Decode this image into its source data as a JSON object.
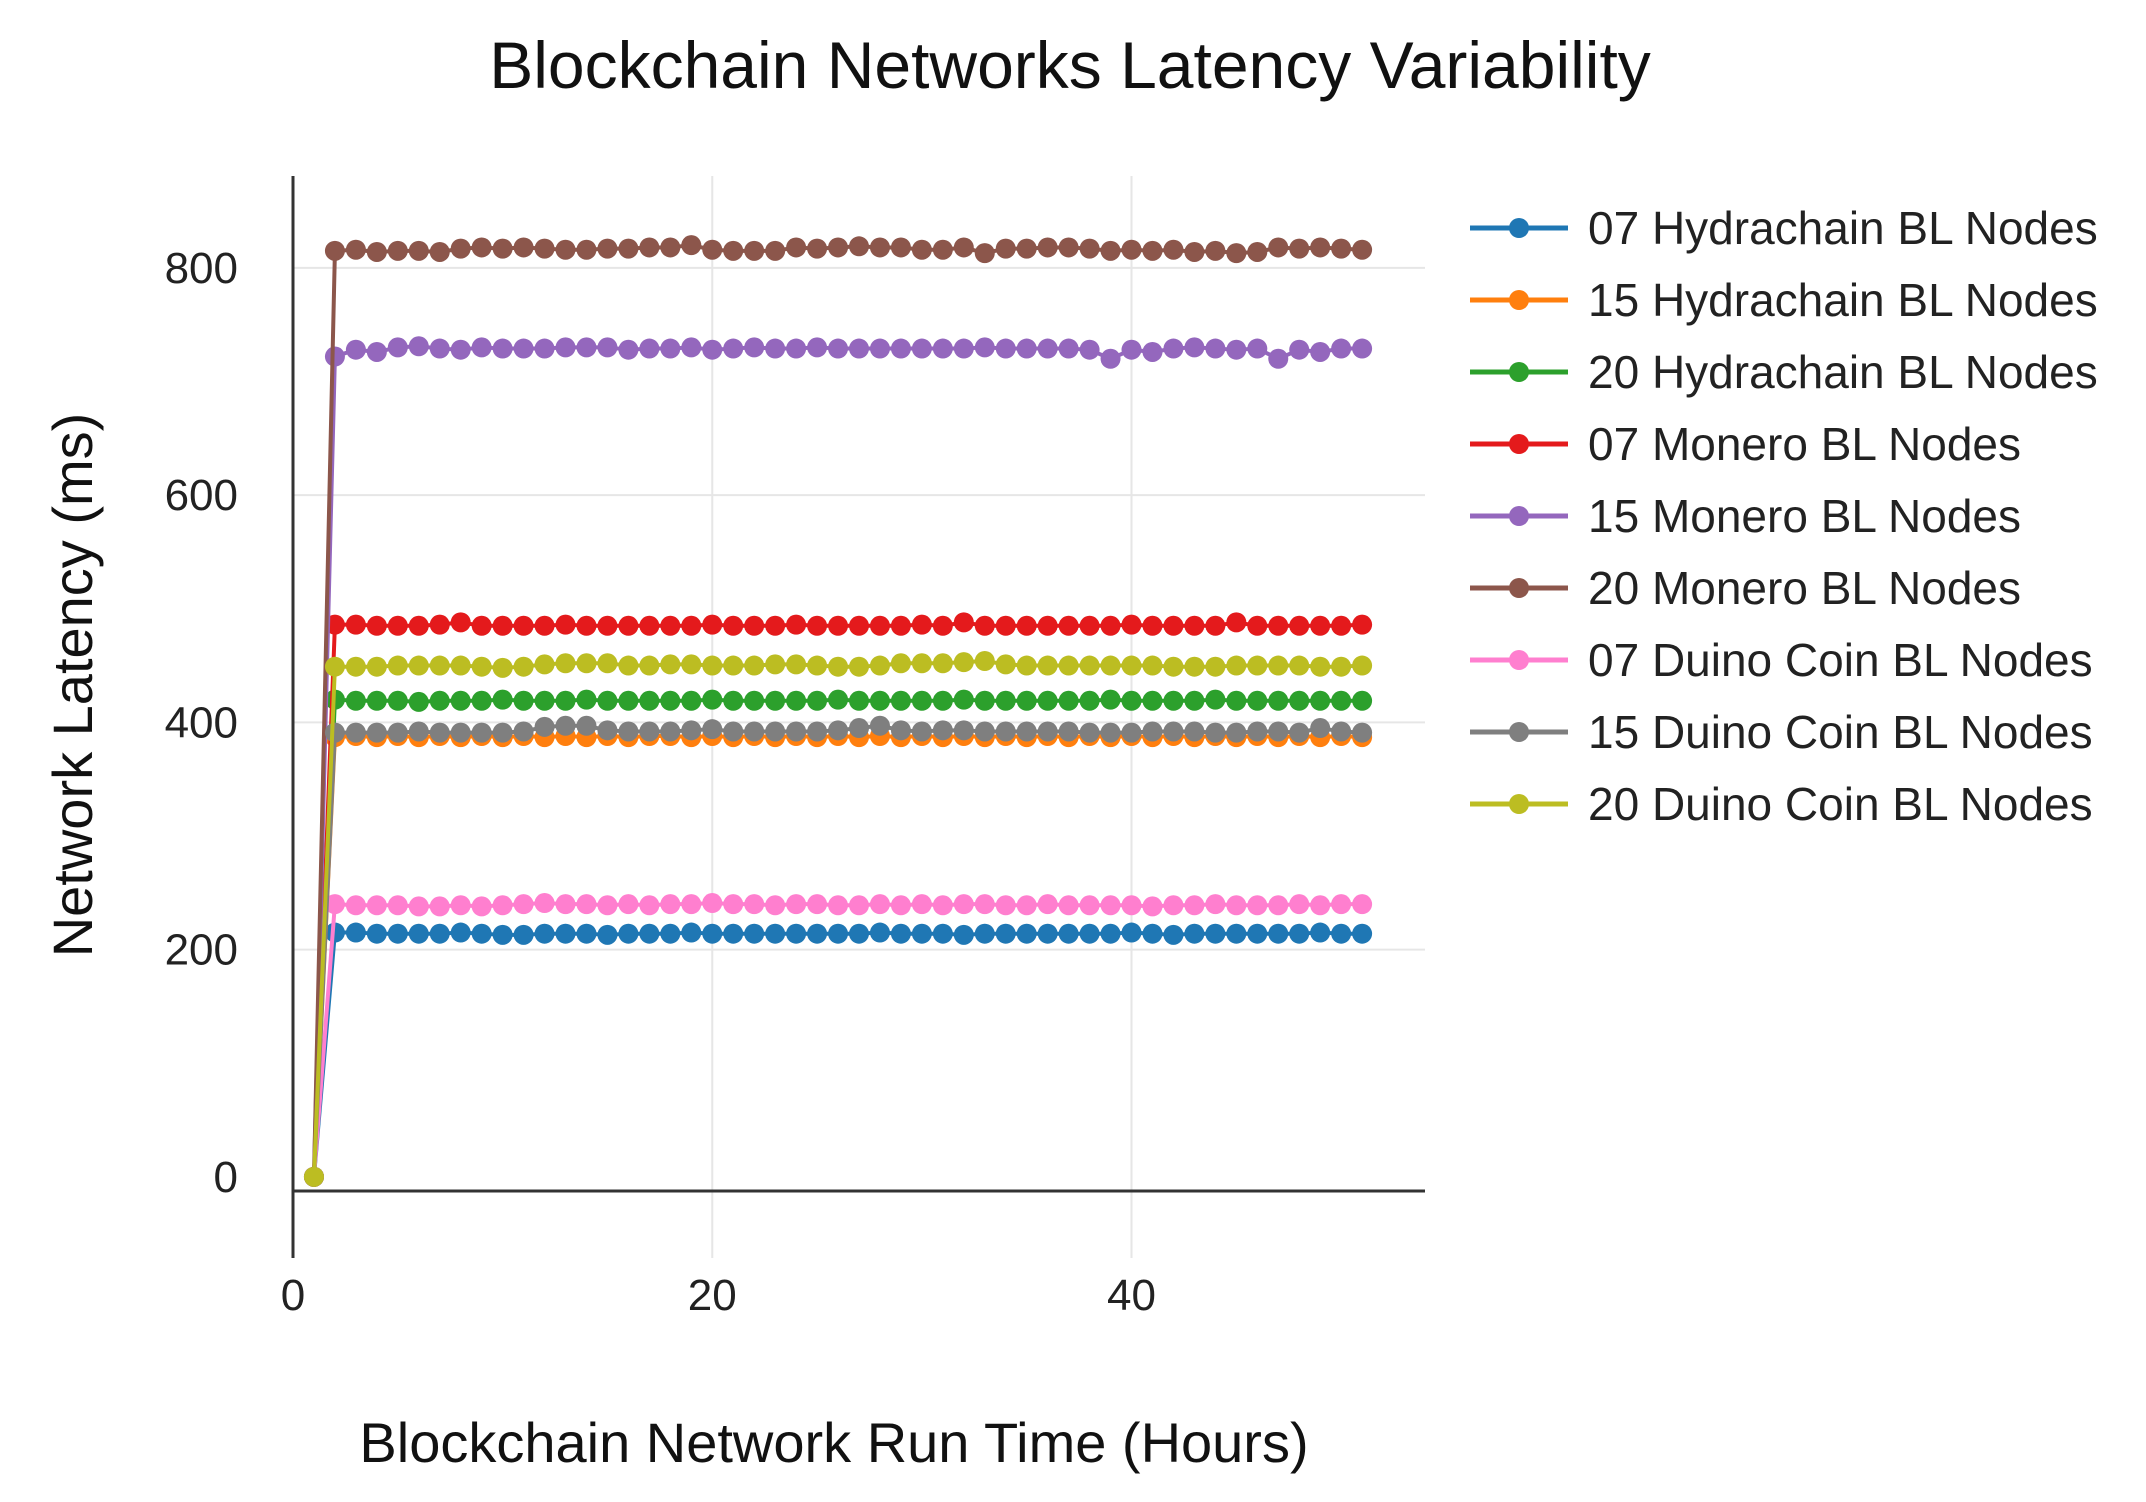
{
  "chart_data": {
    "type": "line",
    "title": "Blockchain Networks Latency Variability",
    "xlabel": "Blockchain Network Run Time (Hours)",
    "ylabel": "Network Latency (ms)",
    "xlim": [
      0,
      54
    ],
    "ylim": [
      -60,
      880
    ],
    "xticks": [
      0,
      20,
      40
    ],
    "yticks": [
      0,
      200,
      400,
      600,
      800
    ],
    "grid": true,
    "legend_position": "right",
    "x": [
      1,
      2,
      3,
      4,
      5,
      6,
      7,
      8,
      9,
      10,
      11,
      12,
      13,
      14,
      15,
      16,
      17,
      18,
      19,
      20,
      21,
      22,
      23,
      24,
      25,
      26,
      27,
      28,
      29,
      30,
      31,
      32,
      33,
      34,
      35,
      36,
      37,
      38,
      39,
      40,
      41,
      42,
      43,
      44,
      45,
      46,
      47,
      48,
      49,
      50,
      51
    ],
    "series": [
      {
        "name": "07 Hydrachain BL Nodes",
        "color": "#1f77b4",
        "values": [
          0,
          215,
          215,
          214,
          214,
          214,
          214,
          215,
          214,
          213,
          213,
          214,
          214,
          214,
          213,
          214,
          214,
          214,
          215,
          214,
          214,
          214,
          214,
          214,
          214,
          214,
          214,
          215,
          214,
          214,
          214,
          213,
          214,
          214,
          214,
          214,
          214,
          214,
          214,
          215,
          214,
          213,
          214,
          214,
          214,
          214,
          214,
          214,
          215,
          214,
          214
        ]
      },
      {
        "name": "15 Hydrachain BL Nodes",
        "color": "#ff7f0e",
        "values": [
          0,
          387,
          388,
          387,
          388,
          387,
          388,
          387,
          388,
          387,
          388,
          387,
          388,
          387,
          388,
          387,
          388,
          388,
          387,
          388,
          387,
          388,
          387,
          388,
          387,
          388,
          387,
          388,
          387,
          388,
          387,
          388,
          387,
          388,
          387,
          388,
          387,
          388,
          387,
          388,
          387,
          388,
          387,
          388,
          387,
          388,
          387,
          388,
          387,
          388,
          387
        ]
      },
      {
        "name": "20 Hydrachain BL Nodes",
        "color": "#2ca02c",
        "values": [
          0,
          420,
          419,
          419,
          419,
          418,
          419,
          419,
          419,
          420,
          419,
          419,
          419,
          420,
          419,
          419,
          419,
          419,
          419,
          420,
          419,
          419,
          419,
          419,
          419,
          420,
          419,
          419,
          419,
          419,
          419,
          420,
          419,
          419,
          419,
          419,
          419,
          419,
          420,
          419,
          419,
          419,
          419,
          420,
          419,
          419,
          419,
          419,
          419,
          419,
          419
        ]
      },
      {
        "name": "07 Monero BL Nodes",
        "color": "#e41a1c",
        "values": [
          0,
          486,
          486,
          485,
          485,
          485,
          486,
          488,
          485,
          485,
          485,
          485,
          486,
          485,
          485,
          485,
          485,
          485,
          485,
          486,
          485,
          485,
          485,
          486,
          485,
          485,
          485,
          485,
          485,
          486,
          485,
          488,
          485,
          485,
          485,
          485,
          485,
          485,
          485,
          486,
          485,
          485,
          485,
          485,
          488,
          485,
          485,
          485,
          485,
          485,
          486
        ]
      },
      {
        "name": "15 Monero BL Nodes",
        "color": "#9467bd",
        "values": [
          0,
          722,
          728,
          726,
          730,
          731,
          729,
          728,
          730,
          729,
          729,
          729,
          730,
          730,
          730,
          728,
          729,
          729,
          730,
          728,
          729,
          730,
          729,
          729,
          730,
          729,
          729,
          729,
          729,
          729,
          729,
          729,
          730,
          729,
          729,
          729,
          729,
          728,
          720,
          728,
          726,
          729,
          730,
          729,
          728,
          729,
          720,
          728,
          726,
          729,
          729
        ]
      },
      {
        "name": "20 Monero BL Nodes",
        "color": "#8c564b",
        "values": [
          0,
          815,
          816,
          814,
          815,
          815,
          814,
          817,
          818,
          817,
          818,
          817,
          816,
          816,
          817,
          817,
          818,
          818,
          820,
          816,
          815,
          815,
          815,
          818,
          817,
          818,
          819,
          818,
          818,
          816,
          816,
          818,
          813,
          817,
          817,
          818,
          818,
          817,
          815,
          816,
          815,
          816,
          814,
          815,
          813,
          814,
          818,
          817,
          818,
          817,
          816
        ]
      },
      {
        "name": "07 Duino Coin BL Nodes",
        "color": "#ff7fcf",
        "values": [
          0,
          240,
          239,
          239,
          239,
          238,
          238,
          239,
          238,
          239,
          240,
          241,
          240,
          240,
          239,
          240,
          239,
          240,
          240,
          241,
          240,
          240,
          239,
          240,
          240,
          239,
          239,
          240,
          239,
          240,
          239,
          240,
          240,
          239,
          239,
          240,
          239,
          239,
          239,
          239,
          238,
          239,
          239,
          240,
          239,
          239,
          239,
          240,
          239,
          240,
          240
        ]
      },
      {
        "name": "15 Duino Coin BL Nodes",
        "color": "#7f7f7f",
        "values": [
          0,
          391,
          391,
          391,
          391,
          392,
          391,
          391,
          391,
          391,
          392,
          396,
          397,
          397,
          393,
          392,
          392,
          392,
          393,
          394,
          392,
          392,
          392,
          392,
          392,
          393,
          395,
          397,
          393,
          392,
          393,
          393,
          392,
          392,
          392,
          392,
          392,
          391,
          391,
          391,
          392,
          392,
          392,
          391,
          391,
          392,
          392,
          391,
          395,
          392,
          391
        ]
      },
      {
        "name": "20 Duino Coin BL Nodes",
        "color": "#bcbd22",
        "values": [
          0,
          449,
          449,
          449,
          450,
          450,
          450,
          450,
          449,
          448,
          449,
          451,
          452,
          452,
          452,
          450,
          450,
          451,
          451,
          450,
          450,
          450,
          451,
          451,
          450,
          449,
          449,
          450,
          452,
          452,
          452,
          453,
          454,
          451,
          450,
          450,
          450,
          450,
          450,
          450,
          450,
          449,
          449,
          449,
          450,
          450,
          450,
          450,
          449,
          449,
          450
        ]
      }
    ]
  }
}
